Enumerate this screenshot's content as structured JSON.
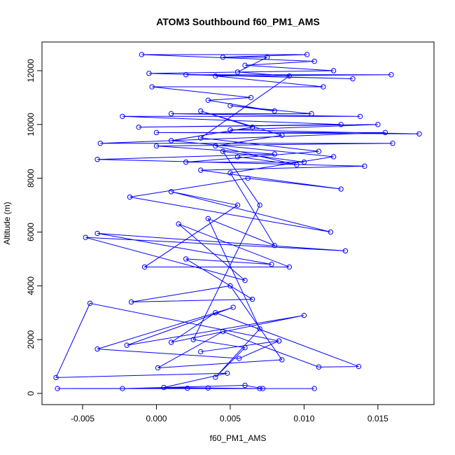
{
  "chart_data": {
    "type": "scatter_line",
    "title": "ATOM3 Southbound f60_PM1_AMS",
    "xlabel": "f60_PM1_AMS",
    "ylabel": "Altitude (m)",
    "color": "#0000ff",
    "xlim": [
      -0.00775,
      0.0188
    ],
    "ylim": [
      -417,
      13067
    ],
    "xticks": [
      -0.005,
      {
        "value": 0,
        "label": "0.000"
      },
      0.005,
      {
        "value": 0.01,
        "label": "0.010"
      },
      0.015
    ],
    "yticks": [
      0,
      2000,
      4000,
      6000,
      8000,
      10000,
      12000
    ],
    "x": [
      0.0107,
      -0.0067,
      0.0021,
      0.007,
      0.0035,
      -0.0023,
      0.006,
      0.0072,
      0.0005,
      0.0048,
      -0.0068,
      -0.0045,
      0.0083,
      0.003,
      0.0083,
      0.0056,
      -0.004,
      0.0052,
      -0.002,
      0.01,
      0.001,
      0.004,
      0.0137,
      0.011,
      0.0045,
      0.0001,
      0.0085,
      0.005,
      -0.0017,
      0.0065,
      0.002,
      0.0078,
      -0.004,
      0.0128,
      -0.0048,
      0.006,
      0.0015,
      0.009,
      -0.0008,
      0.0055,
      0.001,
      0.0118,
      -0.0018,
      0.0062,
      0.0125,
      0.003,
      0.0141,
      -0.004,
      0.008,
      0.0,
      0.016,
      -0.0038,
      0.0155,
      0.0,
      0.0178,
      0.005,
      0.015,
      -0.0012,
      0.0125,
      -0.0023,
      0.0138,
      0.001,
      0.0105,
      0.005,
      0.008,
      0.0035,
      0.0064,
      -0.0003,
      0.0113,
      0.004,
      0.0159,
      0.002,
      0.0133,
      -0.0005,
      0.012,
      0.006,
      0.0107,
      -0.001,
      0.0102,
      0.0045,
      0.0075,
      0.0055,
      0.009,
      0.003,
      0.011,
      0.002,
      0.01,
      0.0045,
      0.007,
      0.0025,
      0.006,
      0.004,
      0.007,
      0.0035,
      0.008,
      0.005,
      0.012,
      0.001,
      0.0065,
      0.003,
      0.0085,
      0.004,
      0.0095,
      0.0055
    ],
    "y": [
      180,
      180,
      190,
      180,
      200,
      180,
      300,
      180,
      220,
      750,
      590,
      3350,
      1950,
      1550,
      1950,
      1300,
      1650,
      3200,
      1790,
      2900,
      1900,
      3000,
      1000,
      980,
      2300,
      950,
      1250,
      4000,
      3400,
      3500,
      5000,
      4800,
      5950,
      5300,
      5800,
      4200,
      6300,
      4700,
      4700,
      7000,
      7500,
      6000,
      7300,
      8000,
      7600,
      8300,
      8450,
      8700,
      8900,
      9200,
      9300,
      9300,
      9700,
      9700,
      9650,
      9800,
      10000,
      9900,
      10000,
      10300,
      10300,
      10400,
      10400,
      10700,
      10500,
      10900,
      11000,
      11400,
      11400,
      11800,
      11850,
      11850,
      11700,
      11900,
      12000,
      12200,
      12350,
      12600,
      12600,
      12500,
      12500,
      11950,
      11800,
      9500,
      9000,
      8600,
      8600,
      9000,
      7000,
      2000,
      1700,
      600,
      2400,
      6500,
      5500,
      8200,
      8800,
      9400,
      9900,
      10500,
      9600,
      9200,
      8500,
      8800
    ]
  }
}
